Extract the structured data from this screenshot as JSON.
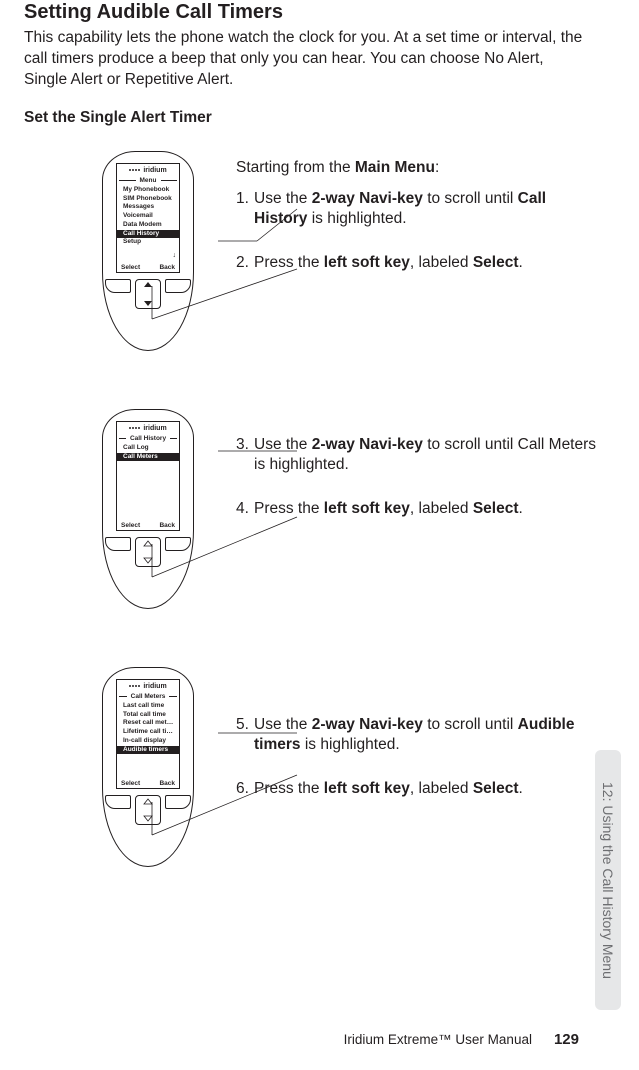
{
  "title": "Setting Audible Call Timers",
  "intro": "This capability lets the phone watch the clock for you. At a set time or interval, the call timers produce a beep that only you can hear. You can choose No Alert, Single Alert or Repetitive Alert.",
  "subhead": "Set the Single Alert Timer",
  "brand": "iridium",
  "softkeys": {
    "left": "Select",
    "right": "Back"
  },
  "screens": {
    "s1": {
      "title": "Menu",
      "items": [
        "My Phonebook",
        "SIM Phonebook",
        "Messages",
        "Voicemail",
        "Data Modem",
        "Call History",
        "Setup"
      ],
      "highlight_index": 5,
      "scroll_arrow": true
    },
    "s2": {
      "title": "Call History",
      "items": [
        "Call Log",
        "Call Meters"
      ],
      "highlight_index": 1,
      "scroll_arrow": false
    },
    "s3": {
      "title": "Call Meters",
      "items": [
        "Last call time",
        "Total call time",
        "Reset call meter. . .",
        "Lifetime call time",
        "In-call display",
        "Audible timers"
      ],
      "highlight_index": 5,
      "scroll_arrow": false
    }
  },
  "instructions": {
    "lead_prefix": "Starting from the ",
    "lead_bold": "Main Menu",
    "lead_suffix": ":",
    "step1_a": "Use the ",
    "step1_b": "2-way Navi-key",
    "step1_c": " to scroll until ",
    "step1_d": "Call History",
    "step1_e": " is highlighted.",
    "step2_a": "Press the ",
    "step2_b": "left soft key",
    "step2_c": ", labeled ",
    "step2_d": "Select",
    "step2_e": ".",
    "step3_a": "Use the ",
    "step3_b": "2-way Navi-key",
    "step3_c": " to scroll until Call Meters is highlighted.",
    "step4_a": "Press the ",
    "step4_b": "left soft key",
    "step4_c": ", labeled ",
    "step4_d": "Select",
    "step4_e": ".",
    "step5_a": "Use the ",
    "step5_b": "2-way Navi-key",
    "step5_c": " to scroll until ",
    "step5_d": "Audible timers",
    "step5_e": " is highlighted.",
    "step6_a": "Press the ",
    "step6_b": "left soft key",
    "step6_c": ", labeled ",
    "step6_d": "Select",
    "step6_e": "."
  },
  "side_tab": "12: Using the Call History Menu",
  "footer_text": "Iridium Extreme™ User Manual",
  "page_number": "129",
  "colors": {
    "text": "#231f20",
    "tab_bg": "#e6e7e8",
    "tab_text": "#6d6e71"
  }
}
